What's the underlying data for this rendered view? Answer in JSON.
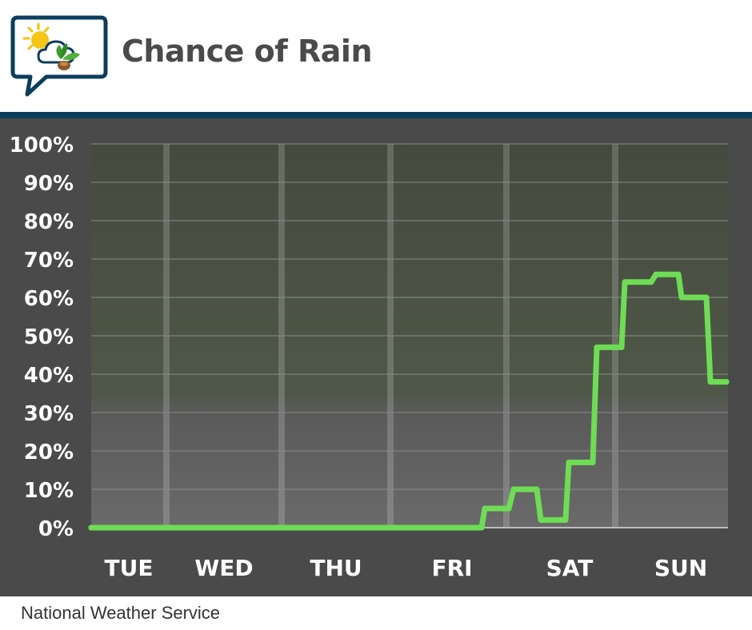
{
  "header": {
    "title": "Chance of Rain",
    "logo_icon": "weather-cloud-sun-plant-logo"
  },
  "footer": {
    "source": "National Weather Service"
  },
  "colors": {
    "brand_bar": "#0d3d5c",
    "series_line": "#6fdc55",
    "panel_bg": "#4a4a4a",
    "plot_top": "#454a3f",
    "plot_bottom": "#6a6a6a",
    "text": "#ffffff"
  },
  "chart_data": {
    "type": "line",
    "title": "Chance of Rain",
    "ylim": [
      0,
      100
    ],
    "ytick_labels": [
      "0%",
      "10%",
      "20%",
      "30%",
      "40%",
      "50%",
      "60%",
      "70%",
      "80%",
      "90%",
      "100%"
    ],
    "xtick_labels": [
      "TUE",
      "WED",
      "THU",
      "FRI",
      "SAT",
      "SUN"
    ],
    "grid": true,
    "series": [
      {
        "steps": [
          {
            "from": "TUE",
            "to": "FRI",
            "value": 0
          },
          {
            "from": "FRI",
            "to": "FRI",
            "value": 5
          },
          {
            "from": "FRI",
            "to": "SAT",
            "value": 10
          },
          {
            "from": "SAT",
            "to": "SAT",
            "value": 2
          },
          {
            "from": "SAT",
            "to": "SAT",
            "value": 17
          },
          {
            "from": "SAT",
            "to": "SAT",
            "value": 47
          },
          {
            "from": "SAT",
            "to": "SUN",
            "value": 64
          },
          {
            "from": "SUN",
            "to": "SUN",
            "value": 66
          },
          {
            "from": "SUN",
            "to": "SUN",
            "value": 60
          },
          {
            "from": "SUN",
            "to": "SUN",
            "value": 38
          }
        ],
        "values": [
          0,
          0,
          0,
          0,
          0,
          0,
          0,
          0,
          0,
          0,
          0,
          0,
          0,
          0,
          0,
          0,
          0,
          0,
          0,
          0,
          0,
          0,
          0,
          0,
          0,
          0,
          0,
          0,
          0,
          0,
          0,
          0,
          0,
          0,
          0,
          0,
          0,
          0,
          0,
          0,
          0,
          0,
          0,
          0,
          0,
          0,
          0,
          0,
          0,
          0,
          5,
          5,
          5,
          10,
          10,
          10,
          10,
          2,
          2,
          2,
          2,
          17,
          17,
          17,
          17,
          47,
          47,
          47,
          47,
          64,
          64,
          64,
          64,
          66,
          66,
          66,
          66,
          60,
          60,
          60,
          60,
          38,
          38
        ]
      }
    ]
  }
}
